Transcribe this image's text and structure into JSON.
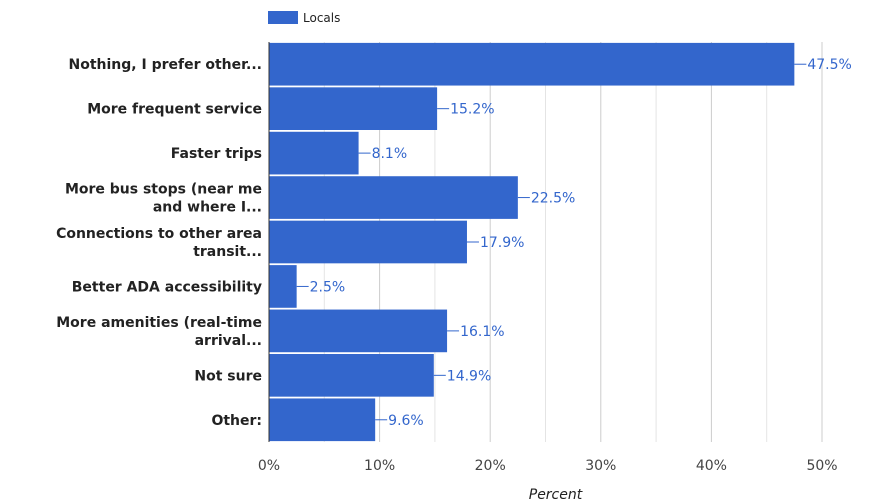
{
  "chart_data": {
    "type": "bar",
    "orientation": "horizontal",
    "categories": [
      [
        "Nothing, I prefer other..."
      ],
      [
        "More frequent service"
      ],
      [
        "Faster trips"
      ],
      [
        "More bus stops (near me",
        "and where I..."
      ],
      [
        "Connections to other area",
        "transit..."
      ],
      [
        "Better ADA accessibility"
      ],
      [
        "More amenities (real-time",
        "arrival..."
      ],
      [
        "Not sure"
      ],
      [
        "Other:"
      ]
    ],
    "series": [
      {
        "name": "Locals",
        "values": [
          47.5,
          15.2,
          8.1,
          22.5,
          17.9,
          2.5,
          16.1,
          14.9,
          9.6
        ],
        "labels": [
          "47.5%",
          "15.2%",
          "8.1%",
          "22.5%",
          "17.9%",
          "2.5%",
          "16.1%",
          "14.9%",
          "9.6%"
        ]
      }
    ],
    "xlabel": "Percent",
    "xlim": [
      0,
      50
    ],
    "xticks": [
      0,
      10,
      20,
      30,
      40,
      50
    ],
    "xtick_labels": [
      "0%",
      "10%",
      "20%",
      "30%",
      "40%",
      "50%"
    ],
    "grid": true,
    "legend_position": "top-left"
  },
  "colors": {
    "bar": "#3366cc",
    "label": "#3366cc",
    "grid": "#cccccc",
    "axis": "#333333"
  }
}
